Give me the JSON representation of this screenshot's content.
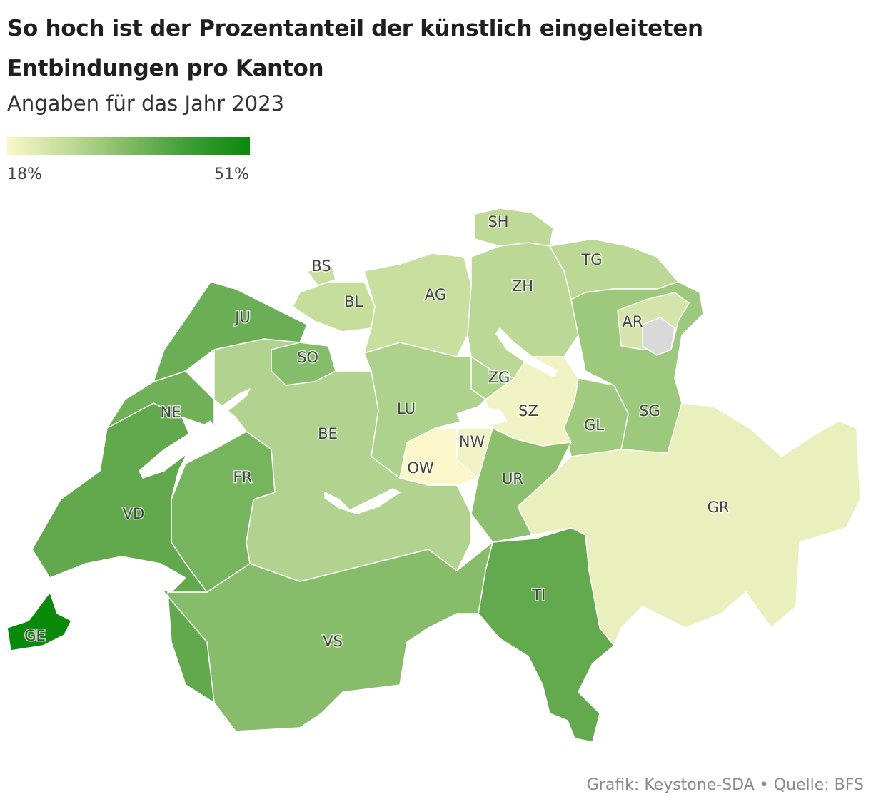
{
  "title": "So hoch ist der Prozentanteil der künstlich eingeleiteten Entbindungen pro Kanton",
  "subtitle": "Angaben für das Jahr 2023",
  "legend": {
    "min": "18%",
    "max": "51%",
    "min_color": "#f9f7c9",
    "max_color": "#0a8a0a"
  },
  "source": "Grafik: Keystone-SDA • Quelle: BFS",
  "colors": {
    "no_data": "#d9d9d9",
    "lakes": "#ffffff"
  },
  "chart_data": {
    "type": "choropleth",
    "value_range": [
      18,
      51
    ],
    "unit": "%",
    "regions": [
      {
        "code": "GE",
        "color": "#0a8a0a"
      },
      {
        "code": "VD",
        "color": "#62a84d"
      },
      {
        "code": "TI",
        "color": "#63aa4f"
      },
      {
        "code": "JU",
        "color": "#6aaf55"
      },
      {
        "code": "NE",
        "color": "#6fb058"
      },
      {
        "code": "FR",
        "color": "#76b45d"
      },
      {
        "code": "VS",
        "color": "#86bc6a"
      },
      {
        "code": "UR",
        "color": "#8cc06e"
      },
      {
        "code": "SO",
        "color": "#86bd6a"
      },
      {
        "code": "SG",
        "color": "#9dc97c"
      },
      {
        "code": "GL",
        "color": "#a0cb7e"
      },
      {
        "code": "LU",
        "color": "#add28b"
      },
      {
        "code": "BE",
        "color": "#b1d38f"
      },
      {
        "code": "ZH",
        "color": "#bbd896"
      },
      {
        "code": "TG",
        "color": "#bbd895"
      },
      {
        "code": "ZG",
        "color": "#afd38c"
      },
      {
        "code": "AG",
        "color": "#c9df9f"
      },
      {
        "code": "BL",
        "color": "#c6de9c"
      },
      {
        "code": "BS",
        "color": "#c9df9f"
      },
      {
        "code": "SH",
        "color": "#bfd999"
      },
      {
        "code": "AR",
        "color": "#d4e4ab"
      },
      {
        "code": "AI",
        "color": "#d9d9d9"
      },
      {
        "code": "GR",
        "color": "#eaf0bd"
      },
      {
        "code": "SZ",
        "color": "#f2f3c5"
      },
      {
        "code": "NW",
        "color": "#f1f2c3"
      },
      {
        "code": "OW",
        "color": "#fbf7cb"
      }
    ]
  }
}
